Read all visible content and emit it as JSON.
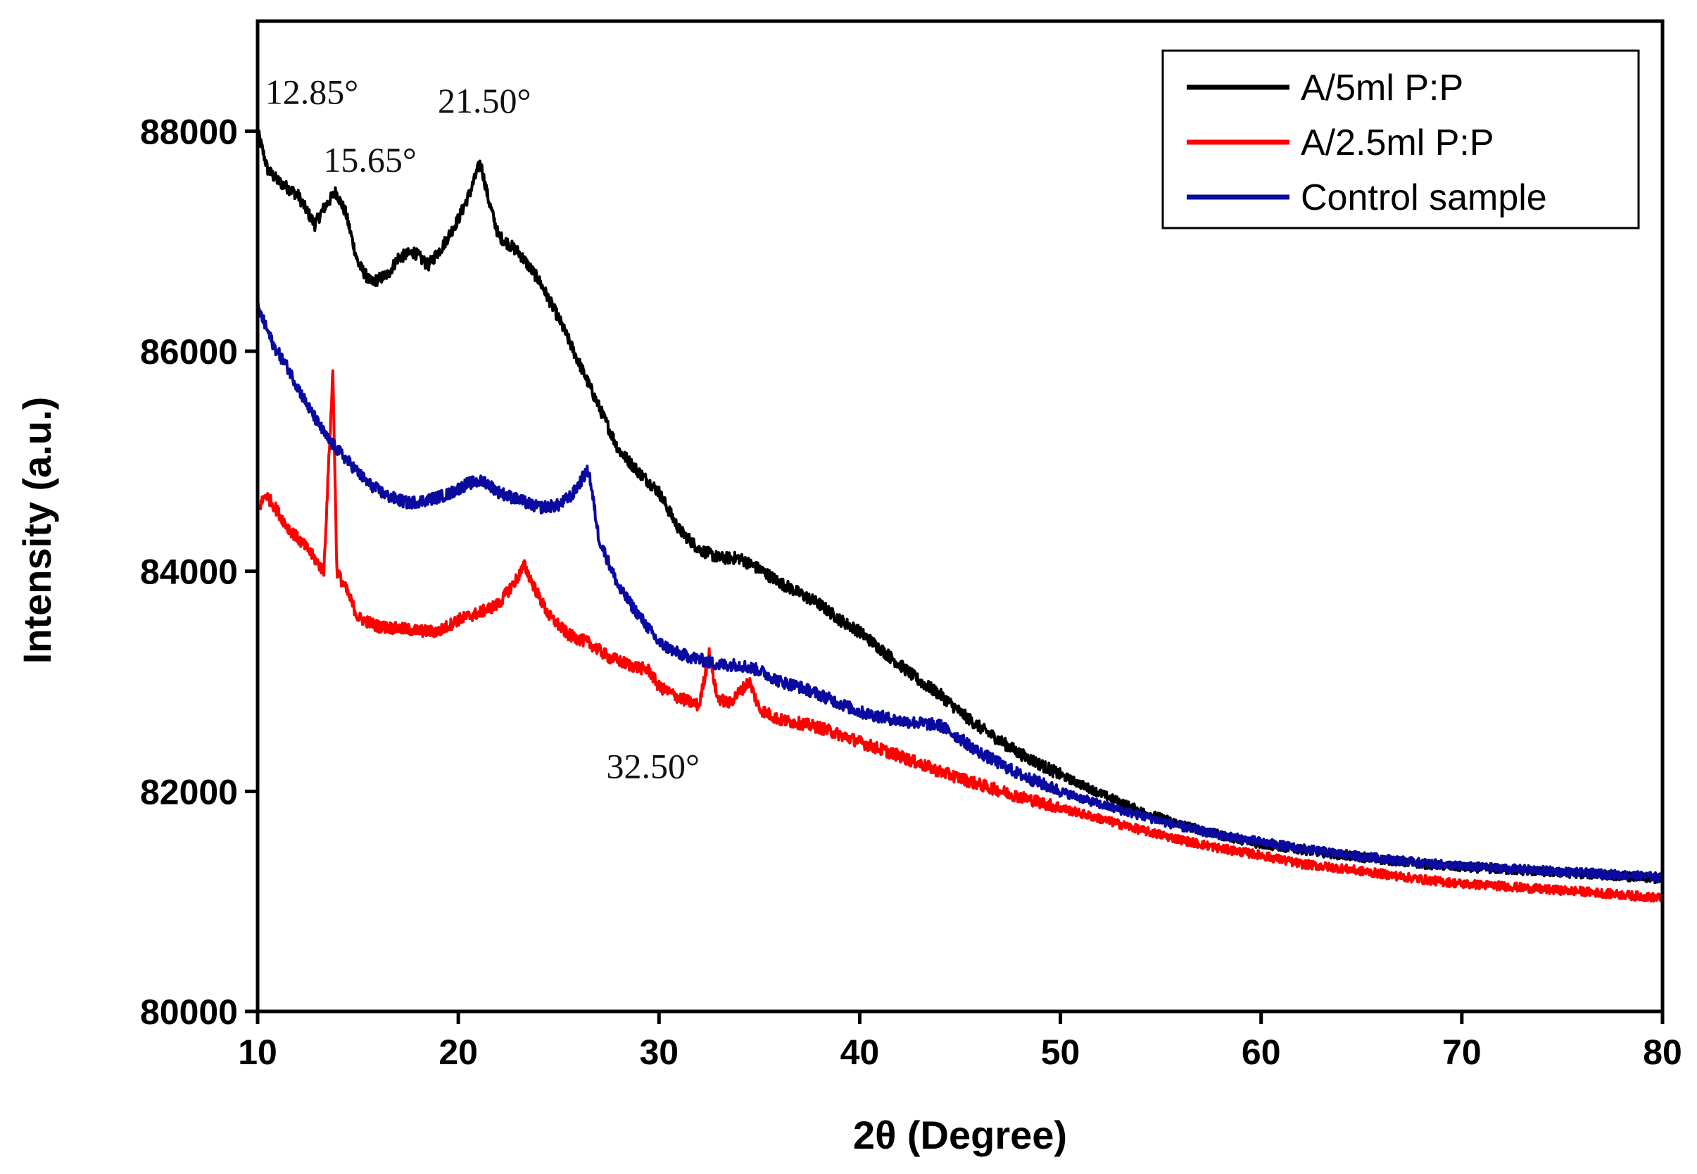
{
  "chart_data": {
    "type": "line",
    "title": "",
    "xlabel": "2θ (Degree)",
    "ylabel": "Intensity (a.u.)",
    "xlim": [
      10,
      80
    ],
    "ylim": [
      80000,
      89000
    ],
    "xticks": [
      10,
      20,
      30,
      40,
      50,
      60,
      70,
      80
    ],
    "yticks": [
      80000,
      82000,
      84000,
      86000,
      88000
    ],
    "legend_position": "top-right",
    "series": [
      {
        "name": "A/5ml P:P",
        "color": "#000000",
        "points": [
          [
            10,
            88000
          ],
          [
            10.5,
            87650
          ],
          [
            11,
            87550
          ],
          [
            12,
            87420
          ],
          [
            12.85,
            87150
          ],
          [
            13.3,
            87300
          ],
          [
            13.9,
            87450
          ],
          [
            14.4,
            87250
          ],
          [
            15,
            86800
          ],
          [
            15.65,
            86620
          ],
          [
            16.5,
            86700
          ],
          [
            17,
            86850
          ],
          [
            17.8,
            86900
          ],
          [
            18.5,
            86780
          ],
          [
            19.2,
            86950
          ],
          [
            20,
            87200
          ],
          [
            20.6,
            87450
          ],
          [
            21.1,
            87720
          ],
          [
            21.5,
            87380
          ],
          [
            22,
            87050
          ],
          [
            23,
            86900
          ],
          [
            24,
            86650
          ],
          [
            25,
            86300
          ],
          [
            26,
            85900
          ],
          [
            27,
            85500
          ],
          [
            28,
            85100
          ],
          [
            29,
            84900
          ],
          [
            30,
            84720
          ],
          [
            31,
            84380
          ],
          [
            32,
            84200
          ],
          [
            33,
            84120
          ],
          [
            34,
            84120
          ],
          [
            35,
            84020
          ],
          [
            36,
            83900
          ],
          [
            37,
            83800
          ],
          [
            38,
            83700
          ],
          [
            39,
            83560
          ],
          [
            40,
            83450
          ],
          [
            41,
            83300
          ],
          [
            42,
            83150
          ],
          [
            43,
            83000
          ],
          [
            44,
            82880
          ],
          [
            45,
            82720
          ],
          [
            46,
            82580
          ],
          [
            47,
            82460
          ],
          [
            48,
            82340
          ],
          [
            50,
            82150
          ],
          [
            52,
            81980
          ],
          [
            54,
            81820
          ],
          [
            56,
            81700
          ],
          [
            58,
            81600
          ],
          [
            60,
            81520
          ],
          [
            62,
            81470
          ],
          [
            64,
            81420
          ],
          [
            66,
            81380
          ],
          [
            68,
            81340
          ],
          [
            70,
            81310
          ],
          [
            72,
            81290
          ],
          [
            74,
            81270
          ],
          [
            76,
            81250
          ],
          [
            78,
            81230
          ],
          [
            80,
            81200
          ]
        ]
      },
      {
        "name": "A/2.5ml P:P",
        "color": "#ff0000",
        "points": [
          [
            10,
            84550
          ],
          [
            10.4,
            84700
          ],
          [
            10.8,
            84600
          ],
          [
            11.5,
            84400
          ],
          [
            12.5,
            84200
          ],
          [
            13.3,
            84000
          ],
          [
            13.75,
            85820
          ],
          [
            13.95,
            84000
          ],
          [
            14.5,
            83800
          ],
          [
            15,
            83580
          ],
          [
            16,
            83500
          ],
          [
            17,
            83480
          ],
          [
            18,
            83460
          ],
          [
            19,
            83450
          ],
          [
            20,
            83560
          ],
          [
            21,
            83620
          ],
          [
            22,
            83700
          ],
          [
            22.8,
            83900
          ],
          [
            23.3,
            84050
          ],
          [
            23.8,
            83850
          ],
          [
            24.5,
            83600
          ],
          [
            25.5,
            83420
          ],
          [
            26.5,
            83350
          ],
          [
            27.5,
            83220
          ],
          [
            28.5,
            83150
          ],
          [
            29.5,
            83100
          ],
          [
            30,
            82950
          ],
          [
            31,
            82850
          ],
          [
            32,
            82780
          ],
          [
            32.5,
            83250
          ],
          [
            32.9,
            82850
          ],
          [
            33.5,
            82800
          ],
          [
            34.5,
            83000
          ],
          [
            35,
            82750
          ],
          [
            36,
            82650
          ],
          [
            37,
            82620
          ],
          [
            38,
            82580
          ],
          [
            40,
            82450
          ],
          [
            42,
            82320
          ],
          [
            44,
            82180
          ],
          [
            46,
            82060
          ],
          [
            48,
            81950
          ],
          [
            50,
            81850
          ],
          [
            52,
            81750
          ],
          [
            54,
            81650
          ],
          [
            56,
            81560
          ],
          [
            58,
            81480
          ],
          [
            60,
            81420
          ],
          [
            62,
            81340
          ],
          [
            64,
            81300
          ],
          [
            66,
            81250
          ],
          [
            68,
            81200
          ],
          [
            70,
            81160
          ],
          [
            72,
            81140
          ],
          [
            74,
            81110
          ],
          [
            76,
            81090
          ],
          [
            78,
            81060
          ],
          [
            80,
            81030
          ]
        ]
      },
      {
        "name": "Control sample",
        "color": "#0a0aa0",
        "points": [
          [
            10,
            86400
          ],
          [
            10.8,
            86050
          ],
          [
            11.5,
            85850
          ],
          [
            12.5,
            85500
          ],
          [
            13.5,
            85200
          ],
          [
            14.5,
            85000
          ],
          [
            15.5,
            84800
          ],
          [
            16.5,
            84680
          ],
          [
            17.5,
            84620
          ],
          [
            18.5,
            84650
          ],
          [
            19.5,
            84700
          ],
          [
            20.5,
            84800
          ],
          [
            21.3,
            84820
          ],
          [
            22,
            84720
          ],
          [
            23,
            84650
          ],
          [
            24,
            84580
          ],
          [
            25,
            84600
          ],
          [
            25.7,
            84700
          ],
          [
            26.2,
            84850
          ],
          [
            26.5,
            84920
          ],
          [
            27,
            84300
          ],
          [
            28,
            83850
          ],
          [
            29,
            83600
          ],
          [
            30,
            83350
          ],
          [
            31,
            83250
          ],
          [
            32,
            83200
          ],
          [
            33,
            83150
          ],
          [
            34,
            83150
          ],
          [
            35,
            83100
          ],
          [
            36,
            83000
          ],
          [
            37,
            82950
          ],
          [
            38,
            82880
          ],
          [
            39,
            82800
          ],
          [
            40,
            82720
          ],
          [
            42,
            82640
          ],
          [
            44,
            82600
          ],
          [
            45,
            82480
          ],
          [
            46,
            82350
          ],
          [
            48,
            82150
          ],
          [
            50,
            82000
          ],
          [
            52,
            81880
          ],
          [
            54,
            81780
          ],
          [
            56,
            81680
          ],
          [
            58,
            81600
          ],
          [
            60,
            81540
          ],
          [
            62,
            81480
          ],
          [
            64,
            81430
          ],
          [
            66,
            81390
          ],
          [
            68,
            81350
          ],
          [
            70,
            81320
          ],
          [
            72,
            81300
          ],
          [
            74,
            81280
          ],
          [
            76,
            81260
          ],
          [
            78,
            81240
          ],
          [
            80,
            81220
          ]
        ]
      }
    ],
    "annotations": [
      {
        "text": "12.85°",
        "x": 12.7,
        "y": 88250
      },
      {
        "text": "15.65°",
        "x": 15.6,
        "y": 87630
      },
      {
        "text": "21.50°",
        "x": 21.3,
        "y": 88170
      },
      {
        "text": "32.50°",
        "x": 29.7,
        "y": 82120
      }
    ]
  }
}
